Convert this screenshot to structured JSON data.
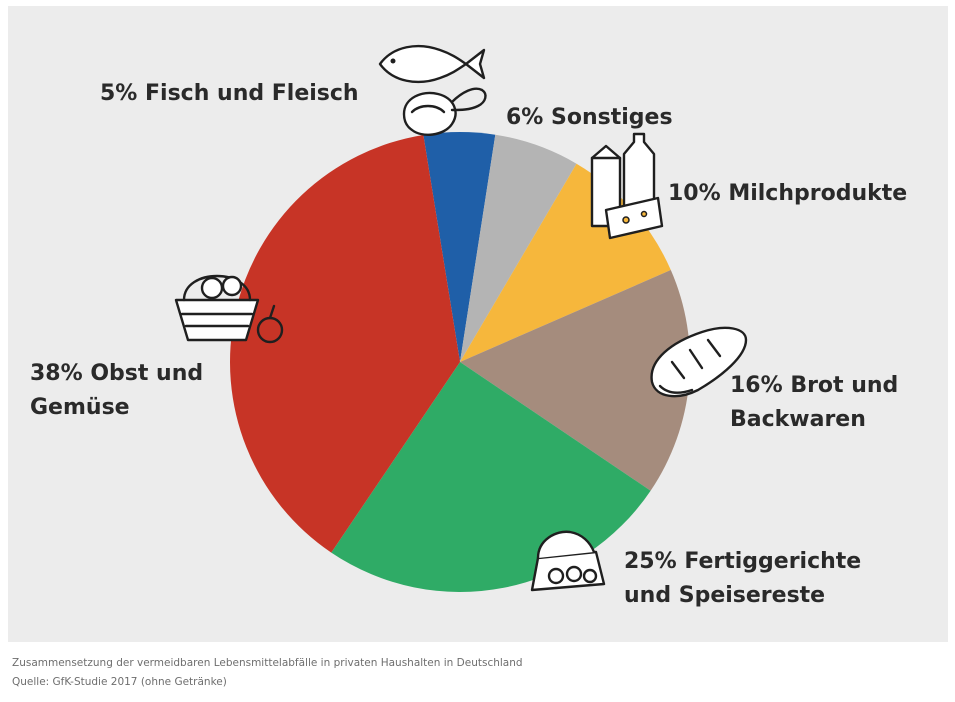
{
  "chart_data": {
    "type": "pie",
    "categories": [
      "Fisch und Fleisch",
      "Sonstiges",
      "Milchprodukte",
      "Brot und Backwaren",
      "Fertiggerichte und Speisereste",
      "Obst und Gemüse"
    ],
    "values": [
      5,
      6,
      10,
      16,
      25,
      38
    ],
    "unit": "%",
    "colors": [
      "#1f5fa8",
      "#b4b4b4",
      "#f6b73c",
      "#a58c7d",
      "#2fab66",
      "#c73426"
    ],
    "labels": [
      {
        "category": "Fisch und Fleisch",
        "lines": [
          "5% Fisch und Fleisch"
        ],
        "icon": "fish-and-meat-icon"
      },
      {
        "category": "Sonstiges",
        "lines": [
          "6% Sonstiges"
        ],
        "icon": ""
      },
      {
        "category": "Milchprodukte",
        "lines": [
          "10% Milchprodukte"
        ],
        "icon": "milk-carton-cheese-icon"
      },
      {
        "category": "Brot und Backwaren",
        "lines": [
          "16% Brot und",
          "Backwaren"
        ],
        "icon": "bread-icon"
      },
      {
        "category": "Fertiggerichte und Speisereste",
        "lines": [
          "25% Fertiggerichte",
          "und Speisereste"
        ],
        "icon": "food-container-icon"
      },
      {
        "category": "Obst und Gemüse",
        "lines": [
          "38% Obst und",
          "Gemüse"
        ],
        "icon": "fruit-basket-icon"
      }
    ],
    "start": "top, clockwise from Fisch und Fleisch",
    "legend": "none (labels placed next to slices)"
  },
  "caption": {
    "line1": "Zusammensetzung der vermeidbaren Lebensmittelabfälle in privaten Haushalten in Deutschland",
    "line2": "Quelle: GfK-Studie 2017 (ohne Getränke)"
  }
}
